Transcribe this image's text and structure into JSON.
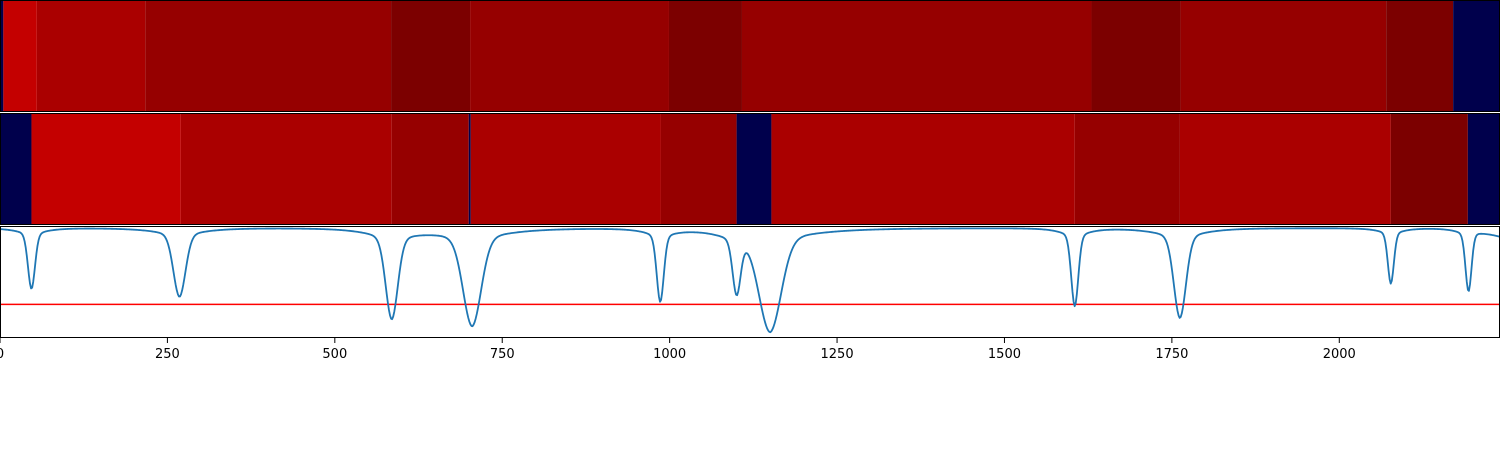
{
  "chart_data": [
    {
      "type": "heatmap",
      "title": "",
      "xlim": [
        0,
        2240
      ],
      "segments": [
        {
          "start": 0,
          "end": 5,
          "color": "#00004c"
        },
        {
          "start": 5,
          "end": 55,
          "color": "#c40000"
        },
        {
          "start": 55,
          "end": 217,
          "color": "#aa0000"
        },
        {
          "start": 217,
          "end": 584,
          "color": "#960000"
        },
        {
          "start": 584,
          "end": 702,
          "color": "#7c0000"
        },
        {
          "start": 702,
          "end": 999,
          "color": "#960000"
        },
        {
          "start": 999,
          "end": 1108,
          "color": "#7c0000"
        },
        {
          "start": 1108,
          "end": 1630,
          "color": "#960000"
        },
        {
          "start": 1630,
          "end": 1763,
          "color": "#7c0000"
        },
        {
          "start": 1763,
          "end": 2070,
          "color": "#960000"
        },
        {
          "start": 2070,
          "end": 2170,
          "color": "#7c0000"
        },
        {
          "start": 2170,
          "end": 2240,
          "color": "#00004c"
        }
      ]
    },
    {
      "type": "heatmap",
      "title": "",
      "xlim": [
        0,
        2240
      ],
      "segments": [
        {
          "start": 0,
          "end": 47,
          "color": "#00004c"
        },
        {
          "start": 47,
          "end": 270,
          "color": "#c40000"
        },
        {
          "start": 270,
          "end": 585,
          "color": "#aa0000"
        },
        {
          "start": 585,
          "end": 700,
          "color": "#960000"
        },
        {
          "start": 700,
          "end": 703,
          "color": "#00004c"
        },
        {
          "start": 703,
          "end": 987,
          "color": "#aa0000"
        },
        {
          "start": 987,
          "end": 1100,
          "color": "#960000"
        },
        {
          "start": 1100,
          "end": 1152,
          "color": "#00004c"
        },
        {
          "start": 1152,
          "end": 1605,
          "color": "#aa0000"
        },
        {
          "start": 1605,
          "end": 1762,
          "color": "#960000"
        },
        {
          "start": 1762,
          "end": 2077,
          "color": "#aa0000"
        },
        {
          "start": 2077,
          "end": 2192,
          "color": "#7c0000"
        },
        {
          "start": 2192,
          "end": 2240,
          "color": "#00004c"
        }
      ]
    },
    {
      "type": "line",
      "title": "",
      "xlabel": "",
      "ylabel": "",
      "xlim": [
        0,
        2240
      ],
      "ylim": [
        -0.98,
        0.02
      ],
      "xticks": [
        {
          "value": 0,
          "label": "0"
        },
        {
          "value": 250,
          "label": "250"
        },
        {
          "value": 500,
          "label": "500"
        },
        {
          "value": 750,
          "label": "750"
        },
        {
          "value": 1000,
          "label": "1000"
        },
        {
          "value": 1250,
          "label": "1250"
        },
        {
          "value": 1500,
          "label": "1500"
        },
        {
          "value": 1750,
          "label": "1750"
        },
        {
          "value": 2000,
          "label": "2000"
        }
      ],
      "threshold": {
        "value": -0.68,
        "color": "#ff0000"
      },
      "series": [
        {
          "color": "#1f77b4",
          "baseline": 0.0,
          "dips": [
            {
              "center": 47,
              "depth": -0.46,
              "width": 7
            },
            {
              "center": 268,
              "depth": -0.52,
              "width": 12
            },
            {
              "center": 585,
              "depth": -0.68,
              "width": 12
            },
            {
              "center": 705,
              "depth": -0.74,
              "width": 18
            },
            {
              "center": 986,
              "depth": -0.55,
              "width": 7
            },
            {
              "center": 1100,
              "depth": -0.45,
              "width": 8
            },
            {
              "center": 1150,
              "depth": -0.78,
              "width": 22
            },
            {
              "center": 1605,
              "depth": -0.59,
              "width": 7
            },
            {
              "center": 1762,
              "depth": -0.68,
              "width": 12
            },
            {
              "center": 2077,
              "depth": -0.42,
              "width": 6
            },
            {
              "center": 2193,
              "depth": -0.48,
              "width": 6
            }
          ],
          "end_value": -0.07
        }
      ]
    }
  ],
  "colors": {
    "line": "#1f77b4",
    "threshold": "#ff0000",
    "axis": "#000000"
  }
}
